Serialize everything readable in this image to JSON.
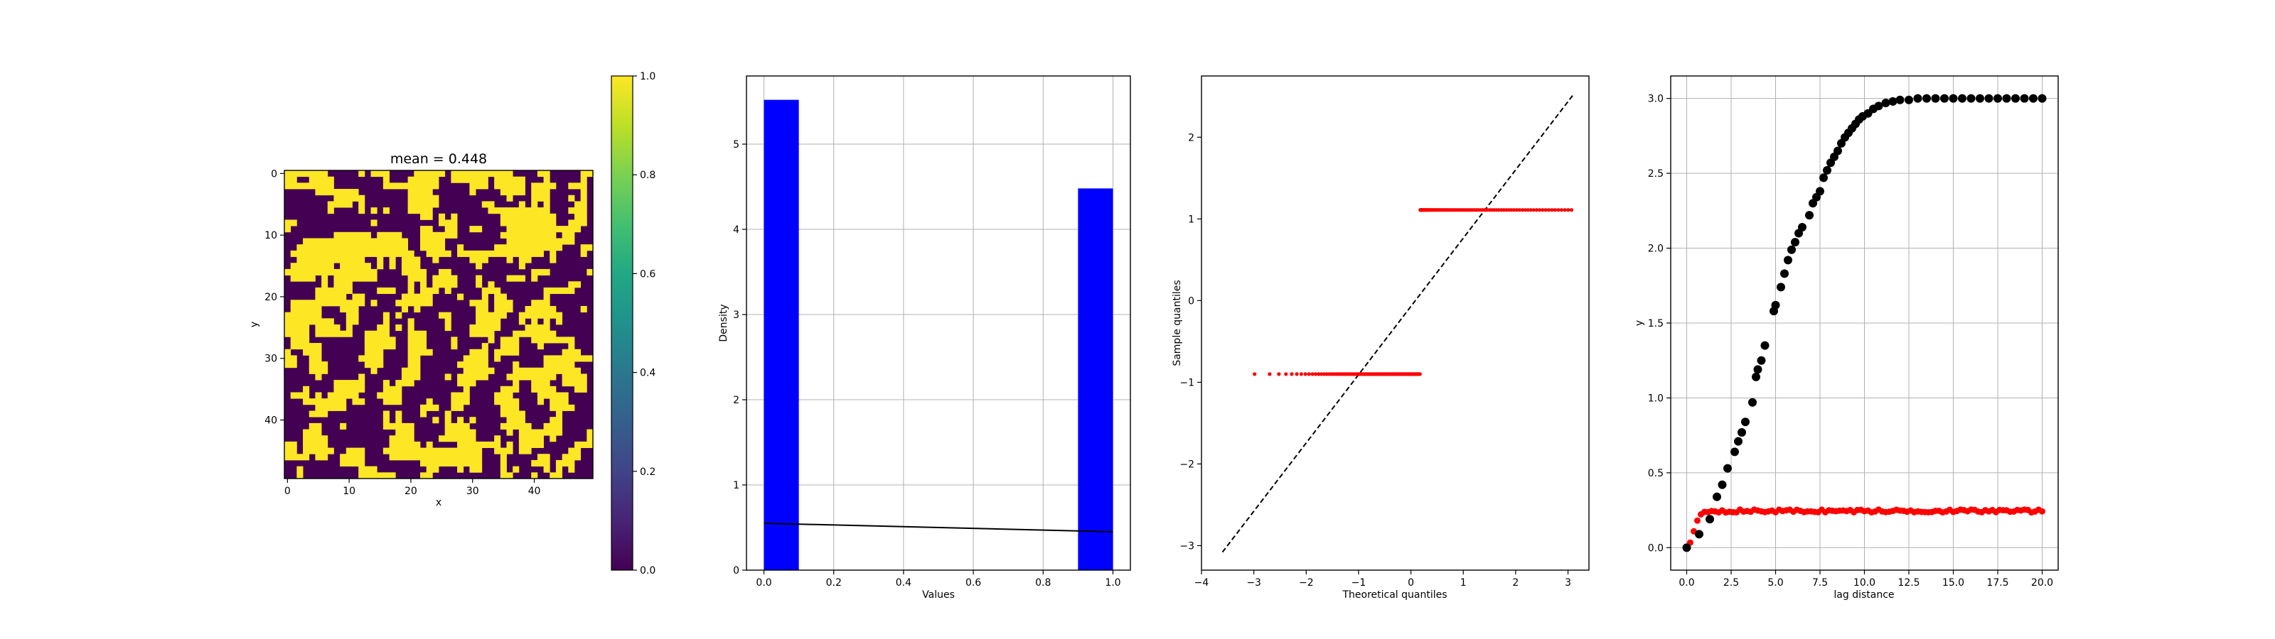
{
  "chart_data": [
    {
      "type": "heatmap",
      "title": "mean = 0.448",
      "xlabel": "x",
      "ylabel": "y",
      "rows": 50,
      "cols": 50,
      "binary_values": [
        0,
        1
      ],
      "mean": 0.448,
      "colormap": "viridis",
      "xticks": [
        "0",
        "10",
        "20",
        "30",
        "40"
      ],
      "yticks": [
        "0",
        "10",
        "20",
        "30",
        "40"
      ],
      "colorbar": {
        "range": [
          0.0,
          1.0
        ],
        "ticks": [
          "0.0",
          "0.2",
          "0.4",
          "0.6",
          "0.8",
          "1.0"
        ]
      }
    },
    {
      "type": "bar",
      "title": "",
      "xlabel": "Values",
      "ylabel": "Density",
      "xlim": [
        -0.05,
        1.05
      ],
      "ylim": [
        0,
        5.8
      ],
      "bars": [
        {
          "x0": 0.0,
          "x1": 0.1,
          "value": 5.52
        },
        {
          "x0": 0.9,
          "x1": 1.0,
          "value": 4.48
        }
      ],
      "bar_color": "#0000ff",
      "line": {
        "x": [
          0.0,
          1.0
        ],
        "y": [
          0.55,
          0.45
        ],
        "color": "#000000"
      },
      "xticks": [
        "0.0",
        "0.2",
        "0.4",
        "0.6",
        "0.8",
        "1.0"
      ],
      "yticks": [
        "0",
        "1",
        "2",
        "3",
        "4",
        "5"
      ],
      "grid": true
    },
    {
      "type": "scatter",
      "title": "",
      "xlabel": "Theoretical quantiles",
      "ylabel": "Sample quantiles",
      "xlim": [
        -4.0,
        3.4
      ],
      "ylim": [
        -3.3,
        2.75
      ],
      "groups": [
        {
          "y": -0.9,
          "x_start": -3.6,
          "x_end": 0.18,
          "color": "#ff0000"
        },
        {
          "y": 1.11,
          "x_start": 0.18,
          "x_end": 3.1,
          "color": "#ff0000"
        }
      ],
      "reference_line": {
        "x": [
          -3.6,
          3.1
        ],
        "y": [
          -3.08,
          2.52
        ],
        "style": "dashed",
        "color": "#000000"
      },
      "xticks": [
        "−4",
        "−3",
        "−2",
        "−1",
        "0",
        "1",
        "2",
        "3"
      ],
      "yticks": [
        "−3",
        "−2",
        "−1",
        "0",
        "1",
        "2"
      ],
      "grid": false
    },
    {
      "type": "scatter",
      "title": "",
      "xlabel": "lag distance",
      "ylabel": "y",
      "xlim": [
        -0.9,
        20.9
      ],
      "ylim": [
        -0.15,
        3.15
      ],
      "series": [
        {
          "color": "#000000",
          "model": "sill 3.0, range 12 (gaussian-like)"
        },
        {
          "color": "#ff0000",
          "model": "plateau ~0.245"
        }
      ],
      "black_points": {
        "x": [
          0,
          0.7,
          1.3,
          1.7,
          2.0,
          2.3,
          2.7,
          2.9,
          3.1,
          3.3,
          3.7,
          3.9,
          4.0,
          4.2,
          4.4,
          4.9,
          5.0,
          5.3,
          5.5,
          5.7,
          5.9,
          6.1,
          6.3,
          6.5,
          6.9,
          7.1,
          7.3,
          7.5,
          7.7,
          7.9,
          8.1,
          8.3,
          8.5,
          8.7,
          8.9,
          9.1,
          9.3,
          9.5,
          9.7,
          9.9,
          10.2,
          10.5,
          10.8,
          11.2,
          11.6,
          12.0,
          12.5,
          13.0,
          13.5,
          14.0,
          14.5,
          15.0,
          15.5,
          16.0,
          16.5,
          17.0,
          17.5,
          18.0,
          18.5,
          19.0,
          19.5,
          20.0
        ],
        "y": [
          0.0,
          0.09,
          0.19,
          0.34,
          0.42,
          0.53,
          0.64,
          0.71,
          0.77,
          0.84,
          0.97,
          1.14,
          1.19,
          1.25,
          1.35,
          1.58,
          1.62,
          1.74,
          1.83,
          1.92,
          1.99,
          2.04,
          2.1,
          2.14,
          2.22,
          2.3,
          2.34,
          2.38,
          2.47,
          2.52,
          2.57,
          2.61,
          2.65,
          2.7,
          2.74,
          2.77,
          2.8,
          2.83,
          2.86,
          2.88,
          2.9,
          2.93,
          2.95,
          2.97,
          2.98,
          2.99,
          2.99,
          3.0,
          3.0,
          3.0,
          3.0,
          3.0,
          3.0,
          3.0,
          3.0,
          3.0,
          3.0,
          3.0,
          3.0,
          3.0,
          3.0,
          3.0
        ]
      },
      "xticks": [
        "0.0",
        "2.5",
        "5.0",
        "7.5",
        "10.0",
        "12.5",
        "15.0",
        "17.5",
        "20.0"
      ],
      "yticks": [
        "0.0",
        "0.5",
        "1.0",
        "1.5",
        "2.0",
        "2.5",
        "3.0"
      ],
      "grid": true
    }
  ]
}
